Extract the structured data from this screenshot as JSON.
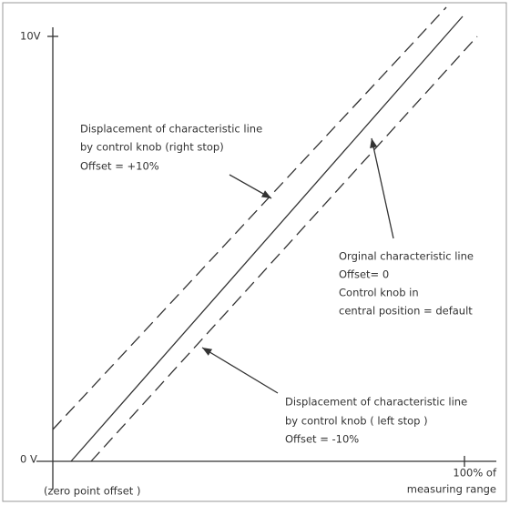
{
  "axes": {
    "y_top_label": "10V",
    "y_bottom_label": "0 V",
    "x_origin_label": "(zero point offset )",
    "x_end_label": [
      "100% of",
      "measuring range"
    ]
  },
  "annotations": [
    {
      "lines": [
        "Displacement of characteristic line",
        "by control knob (right stop)",
        "Offset = +10%"
      ]
    },
    {
      "lines": [
        "Orginal characteristic line",
        "Offset= 0",
        "Control knob in",
        "central position = default"
      ]
    },
    {
      "lines": [
        "Displacement of characteristic line",
        "by control knob ( left stop )",
        "Offset  = -10%"
      ]
    }
  ]
}
